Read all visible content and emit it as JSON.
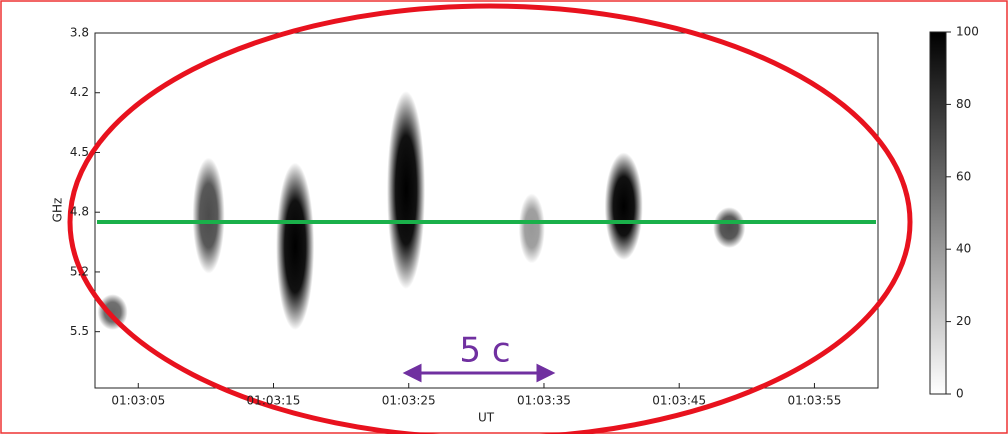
{
  "chart_data": {
    "type": "spectrogram",
    "x_label": "UT",
    "y_label": "GHz",
    "xlim": [
      1.8,
      59.7
    ],
    "xticks": [
      {
        "value": 5,
        "label": "01:03:05"
      },
      {
        "value": 15,
        "label": "01:03:15"
      },
      {
        "value": 25,
        "label": "01:03:25"
      },
      {
        "value": 35,
        "label": "01:03:35"
      },
      {
        "value": 45,
        "label": "01:03:45"
      },
      {
        "value": 55,
        "label": "01:03:55"
      }
    ],
    "ylim": [
      5.88,
      3.8
    ],
    "yticks": [
      {
        "value": 3.8,
        "label": "3.8"
      },
      {
        "value": 4.15,
        "label": "4.2"
      },
      {
        "value": 4.5,
        "label": "4.5"
      },
      {
        "value": 4.85,
        "label": "4.8"
      },
      {
        "value": 5.2,
        "label": "5.2"
      },
      {
        "value": 5.55,
        "label": "5.5"
      }
    ],
    "bursts": {
      "time": [
        3.1,
        10.2,
        16.6,
        24.8,
        34.1,
        40.9,
        48.7
      ],
      "f_min": [
        5.33,
        4.53,
        4.56,
        4.14,
        4.74,
        4.5,
        4.82
      ],
      "f_max": [
        5.54,
        5.21,
        5.54,
        5.3,
        5.15,
        5.13,
        5.06
      ],
      "peak": [
        60,
        70,
        100,
        100,
        40,
        100,
        70
      ]
    },
    "colorbar": {
      "lim": [
        0,
        100
      ],
      "ticks": [
        0,
        20,
        40,
        60,
        80,
        100
      ]
    },
    "annotation": "5 c"
  }
}
